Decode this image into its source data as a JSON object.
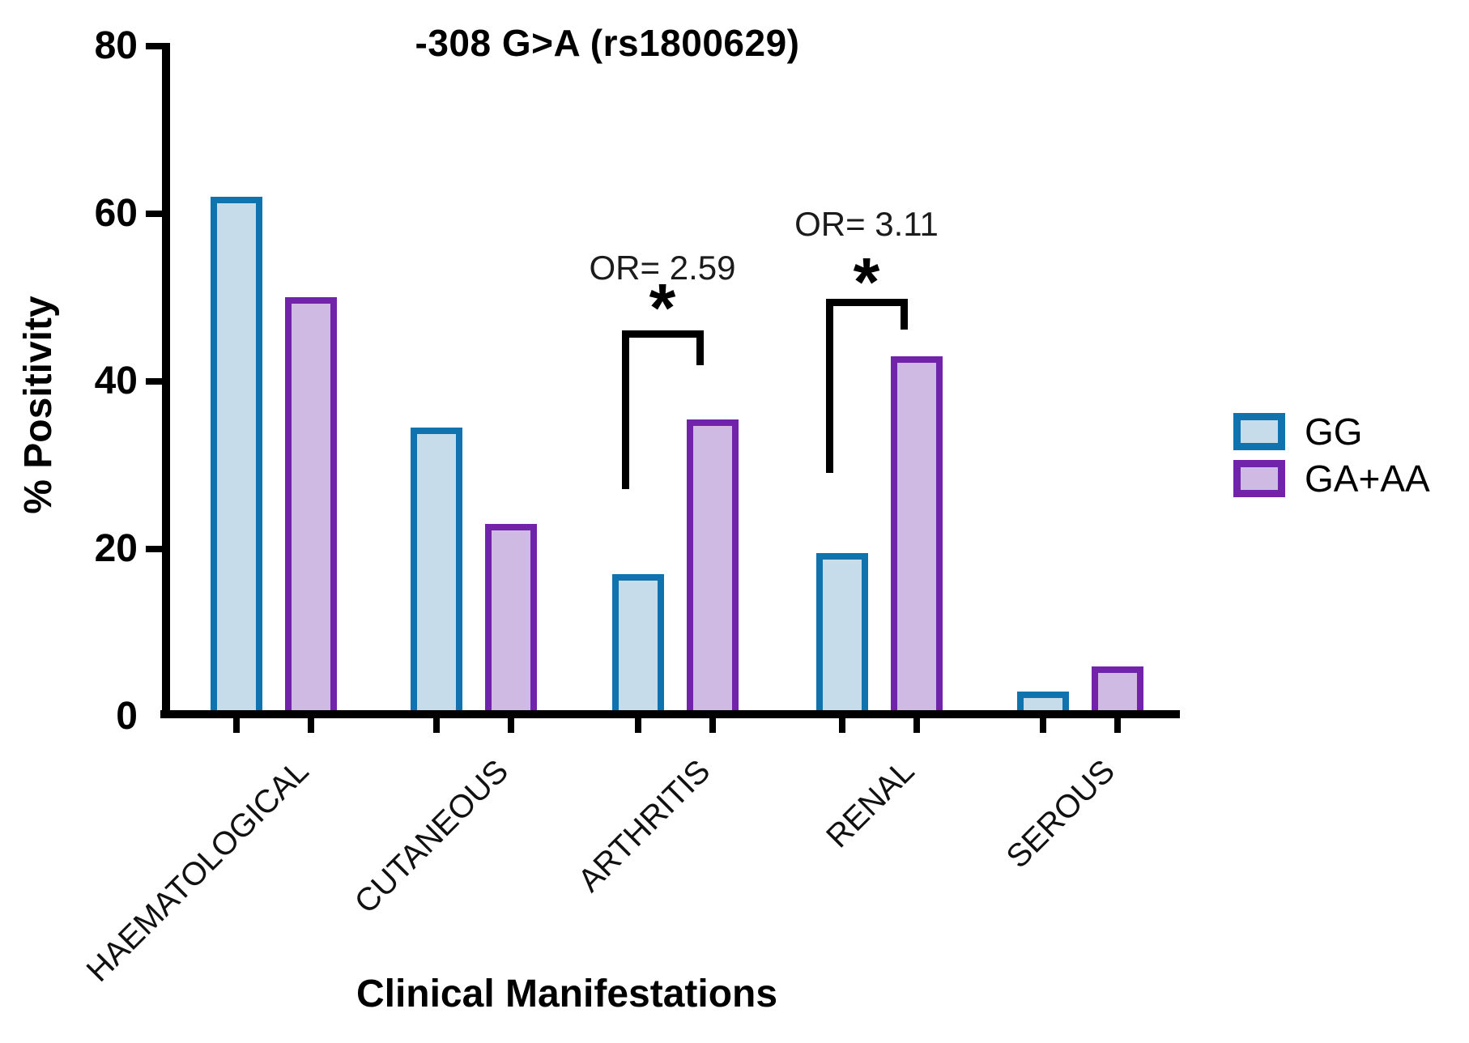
{
  "chart_data": {
    "type": "bar",
    "title": "-308 G>A (rs1800629)",
    "xlabel": "Clinical Manifestations",
    "ylabel": "% Positivity",
    "ylim": [
      0,
      80
    ],
    "yticks": [
      0,
      20,
      40,
      60,
      80
    ],
    "grid": false,
    "legend_position": "right",
    "categories": [
      "HAEMATOLOGICAL",
      "CUTANEOUS",
      "ARTHRITIS",
      "RENAL",
      "SEROUS"
    ],
    "series": [
      {
        "name": "GG",
        "fill": "#C6DCEA",
        "border": "#1173AD",
        "values": [
          62,
          34.5,
          17,
          19.5,
          3
        ]
      },
      {
        "name": "GA+AA",
        "fill": "#CFBAE4",
        "border": "#7123A9",
        "values": [
          50,
          23,
          35.5,
          43,
          6
        ]
      }
    ],
    "annotations": [
      {
        "category": "ARTHRITIS",
        "compared": [
          "GG",
          "GA+AA"
        ],
        "or_label": "OR= 2.59",
        "star": "*",
        "bracket": {
          "top": 45.7,
          "left_bottom": 27.5,
          "right_bottom": 42.3
        },
        "star_y": 50,
        "or_y": 53.5
      },
      {
        "category": "RENAL",
        "compared": [
          "GG",
          "GA+AA"
        ],
        "or_label": "OR= 3.11",
        "star": "*",
        "bracket": {
          "top": 49.5,
          "left_bottom": 29.5,
          "right_bottom": 46.6
        },
        "star_y": 53,
        "or_y": 58.7
      }
    ],
    "axis_color": "#000000",
    "text_color": "#000000"
  }
}
